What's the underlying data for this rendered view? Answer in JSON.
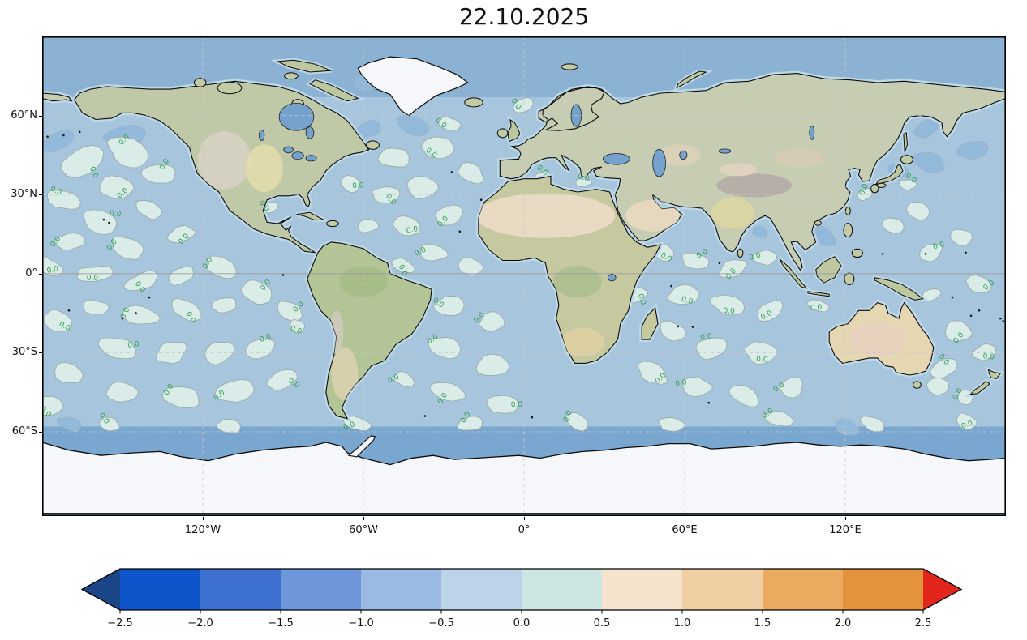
{
  "title": "22.10.2025",
  "map": {
    "contour_label": "0.0",
    "lat_ticks": [
      {
        "label": "60°N",
        "lat": 60
      },
      {
        "label": "30°N",
        "lat": 30
      },
      {
        "label": "0°",
        "lat": 0
      },
      {
        "label": "30°S",
        "lat": -30
      },
      {
        "label": "60°S",
        "lat": -60
      }
    ],
    "lon_ticks": [
      {
        "label": "120°W",
        "lon": -120
      },
      {
        "label": "60°W",
        "lon": -60
      },
      {
        "label": "0°",
        "lon": 0
      },
      {
        "label": "60°E",
        "lon": 60
      },
      {
        "label": "120°E",
        "lon": 120
      }
    ]
  },
  "chart_data": {
    "type": "heatmap",
    "title": "22.10.2025",
    "projection": "equirectangular world map, centered on 0°",
    "field": "global sea-surface temperature anomaly (filled contours over ocean)",
    "value_range_shown": [
      -2.5,
      2.5
    ],
    "contour_interval": 0.5,
    "dominant_bands_visible": [
      [
        -1.0,
        -0.5
      ],
      [
        -0.5,
        0.0
      ],
      [
        0.0,
        0.5
      ]
    ],
    "contour_lines": {
      "level": 0.0,
      "label": "0.0",
      "label_color": "#2f9e52",
      "line_color": "#9aa8a4"
    },
    "x_axis": {
      "ticks": [
        "120°W",
        "60°W",
        "0°",
        "60°E",
        "120°E"
      ],
      "tick_lons": [
        -120,
        -60,
        0,
        60,
        120
      ]
    },
    "y_axis": {
      "ticks": [
        "60°N",
        "30°N",
        "0°",
        "30°S",
        "60°S"
      ],
      "tick_lats": [
        60,
        30,
        0,
        -30,
        -60
      ]
    },
    "gridlines": {
      "style": "dashed",
      "interval_deg": 30,
      "color": "#c8c8c8"
    },
    "legend_position": "bottom horizontal colorbar",
    "colorbar": {
      "orientation": "horizontal",
      "extend": "both",
      "levels": [
        -2.5,
        -2.0,
        -1.5,
        -1.0,
        -0.5,
        0.0,
        0.5,
        1.0,
        1.5,
        2.0,
        2.5
      ],
      "tick_labels": [
        "−2.5",
        "−2.0",
        "−1.5",
        "−1.0",
        "−0.5",
        "0.0",
        "0.5",
        "1.0",
        "1.5",
        "2.0",
        "2.5"
      ],
      "segment_colors": [
        "#0e55cb",
        "#3e70d2",
        "#6e96da",
        "#9ab9e3",
        "#bcd3ea",
        "#cde6e4",
        "#f5e4cd",
        "#f0cfa4",
        "#eaab61",
        "#e2933c"
      ],
      "under_color": "#1a4586",
      "over_color": "#e2261c",
      "outline_color": "#000000"
    },
    "colors": {
      "ocean_base": "#a7c5dc",
      "band_positive": "#d9ece8",
      "band_negative_dark": "#93b9da",
      "no_data_polar_water": "#8bb1d3",
      "antarctic_coastal_water": "#7aa7cf",
      "inland_water": "#74a2cc",
      "shelf_halo": "#bdd8e8",
      "coastline": "#0a0a0a",
      "ice_sheet": "#f5f7fa"
    }
  }
}
